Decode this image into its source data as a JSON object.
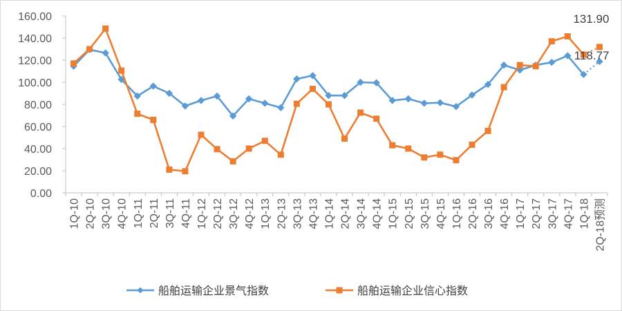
{
  "chart_data": {
    "type": "line",
    "title": "",
    "xlabel": "",
    "ylabel": "",
    "ylim": [
      0,
      160
    ],
    "ytick_step": 20,
    "ytick_format": "0.00",
    "grid": false,
    "legend_position": "bottom",
    "categories": [
      "1Q-10",
      "2Q-10",
      "3Q-10",
      "4Q-10",
      "1Q-11",
      "2Q-11",
      "3Q-11",
      "4Q-11",
      "1Q-12",
      "2Q-12",
      "3Q-12",
      "4Q-12",
      "1Q-13",
      "2Q-13",
      "3Q-13",
      "4Q-13",
      "1Q-14",
      "2Q-14",
      "3Q-14",
      "4Q-14",
      "1Q-15",
      "2Q-15",
      "3Q-15",
      "4Q-15",
      "1Q-16",
      "2Q-16",
      "3Q-16",
      "4Q-16",
      "1Q-17",
      "2Q-17",
      "3Q-17",
      "4Q-17",
      "1Q-18",
      "2Q-18预测"
    ],
    "series": [
      {
        "name": "船舶运输企业景气指数",
        "color": "#5B9BD5",
        "marker": "diamond",
        "values": [
          114.5,
          129.5,
          126.5,
          102.5,
          87.5,
          96.5,
          90.0,
          78.5,
          83.5,
          87.5,
          69.5,
          85.0,
          81.0,
          77.0,
          103.0,
          106.0,
          88.0,
          88.0,
          100.0,
          99.5,
          83.5,
          85.0,
          81.0,
          81.5,
          78.0,
          88.5,
          98.0,
          115.5,
          111.0,
          115.5,
          118.0,
          124.0,
          107.0,
          118.77
        ],
        "projected_from_index": 33
      },
      {
        "name": "船舶运输企业信心指数",
        "color": "#ED7D31",
        "marker": "square",
        "values": [
          117.0,
          130.0,
          148.5,
          110.5,
          71.5,
          66.0,
          21.0,
          19.5,
          52.5,
          39.5,
          28.5,
          40.0,
          47.0,
          34.5,
          80.5,
          94.0,
          80.0,
          49.0,
          72.5,
          67.0,
          43.0,
          40.0,
          32.0,
          34.5,
          29.5,
          43.5,
          56.0,
          95.5,
          115.5,
          114.5,
          137.0,
          141.5,
          125.0,
          131.9
        ],
        "projected_from_index": 33
      }
    ],
    "data_labels": [
      {
        "series": 1,
        "index": 33,
        "text": "131.90"
      },
      {
        "series": 0,
        "index": 33,
        "text": "118.77"
      }
    ]
  }
}
